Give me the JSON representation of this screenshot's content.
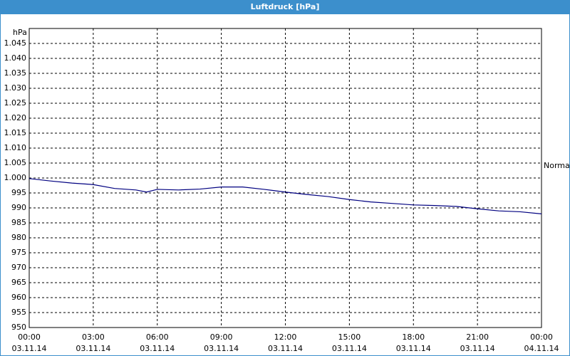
{
  "chart_data": {
    "type": "line",
    "title": "Luftdruck [hPa]",
    "y_label": "hPa",
    "annotation": "Normal",
    "color": "#000080",
    "grid": true,
    "x": [
      0,
      1,
      2,
      3,
      4,
      5,
      5.5,
      6,
      7,
      8,
      9,
      10,
      11,
      12,
      13,
      14,
      15,
      16,
      17,
      18,
      19,
      20,
      21,
      22,
      23,
      24
    ],
    "values": [
      999.8,
      999,
      998.3,
      997.8,
      996.5,
      996,
      995.3,
      996.2,
      996,
      996.3,
      997,
      997,
      996.2,
      995.3,
      994.5,
      993.8,
      992.8,
      992,
      991.5,
      991,
      990.8,
      990.5,
      989.7,
      989,
      988.7,
      988
    ],
    "xlim": [
      0,
      24
    ],
    "xticks": [
      {
        "value": 0,
        "label": "00:00"
      },
      {
        "value": 3,
        "label": "03:00"
      },
      {
        "value": 6,
        "label": "06:00"
      },
      {
        "value": 9,
        "label": "09:00"
      },
      {
        "value": 12,
        "label": "12:00"
      },
      {
        "value": 15,
        "label": "15:00"
      },
      {
        "value": 18,
        "label": "18:00"
      },
      {
        "value": 21,
        "label": "21:00"
      },
      {
        "value": 24,
        "label": "00:00"
      }
    ],
    "xtick_dates": [
      "03.11.14",
      "03.11.14",
      "03.11.14",
      "03.11.14",
      "03.11.14",
      "03.11.14",
      "03.11.14",
      "03.11.14",
      "04.11.14"
    ],
    "ylim": [
      950,
      1050
    ],
    "yticks": [
      950,
      955,
      960,
      965,
      970,
      975,
      980,
      985,
      990,
      995,
      {
        "value": 1000,
        "label": "1.000"
      },
      {
        "value": 1005,
        "label": "1.005"
      },
      {
        "value": 1010,
        "label": "1.010"
      },
      {
        "value": 1015,
        "label": "1.015"
      },
      {
        "value": 1020,
        "label": "1.020"
      },
      {
        "value": 1025,
        "label": "1.025"
      },
      {
        "value": 1030,
        "label": "1.030"
      },
      {
        "value": 1035,
        "label": "1.035"
      },
      {
        "value": 1040,
        "label": "1.040"
      },
      {
        "value": 1045,
        "label": "1.045"
      }
    ]
  }
}
